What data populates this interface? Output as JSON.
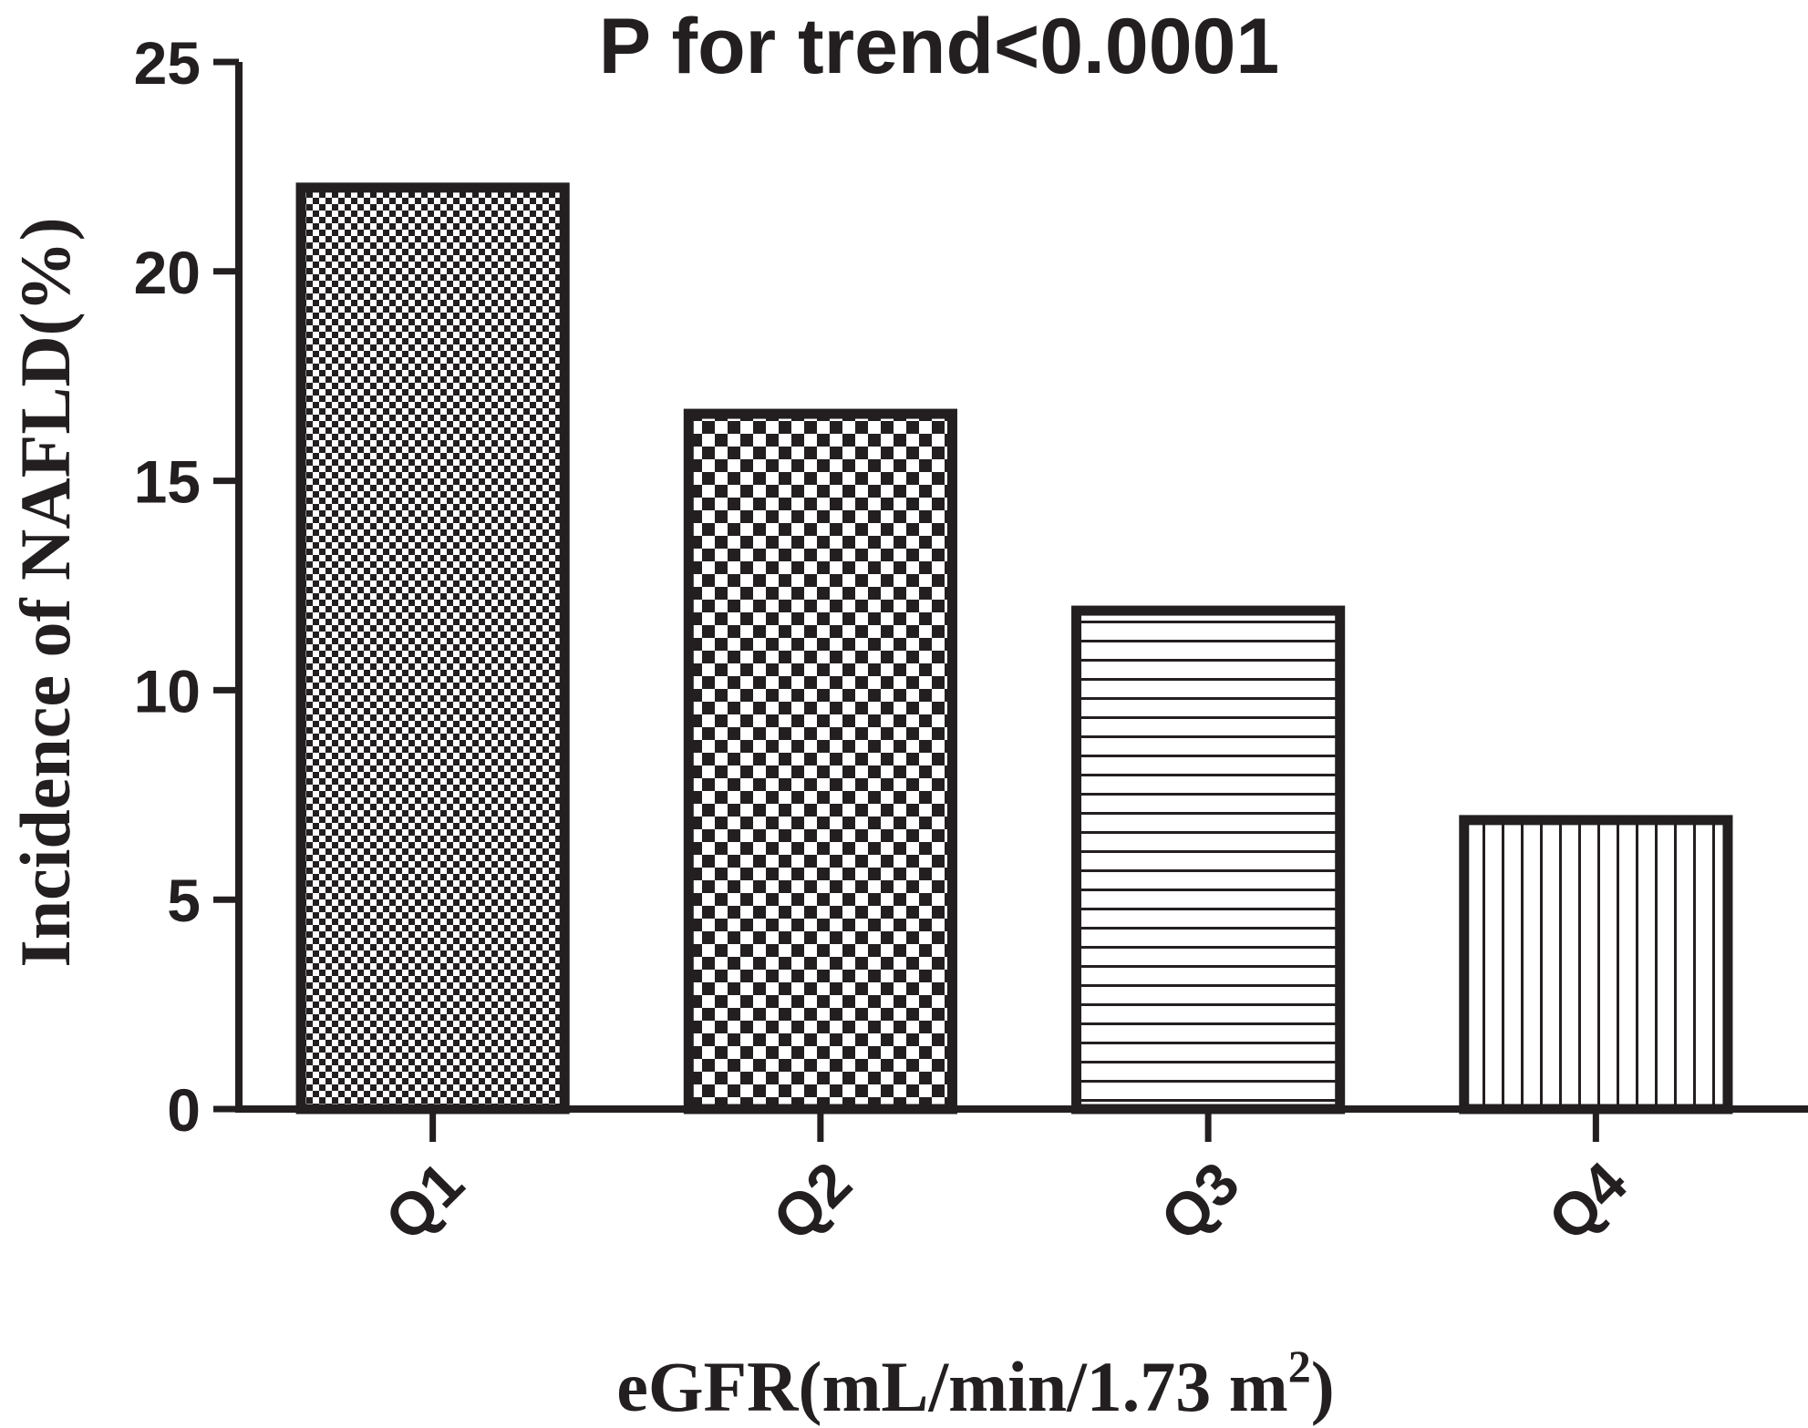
{
  "chart_data": {
    "type": "bar",
    "title": "P for trend<0.0001",
    "xlabel": "eGFR(mL/min/1.73 m",
    "xlabel_superscript": "2",
    "xlabel_suffix": ")",
    "ylabel": "Incidence of NAFLD(%)",
    "categories": [
      "Q1",
      "Q2",
      "Q3",
      "Q4"
    ],
    "values": [
      22.0,
      16.6,
      11.9,
      6.9
    ],
    "ylim": [
      0,
      25
    ],
    "yticks": [
      "0",
      "5",
      "10",
      "15",
      "20",
      "25"
    ],
    "patterns": [
      "fine-checker",
      "coarse-checker",
      "horizontal-lines",
      "vertical-lines"
    ],
    "grid": false,
    "colors": {
      "ink": "#231f20",
      "background": "#ffffff"
    }
  }
}
